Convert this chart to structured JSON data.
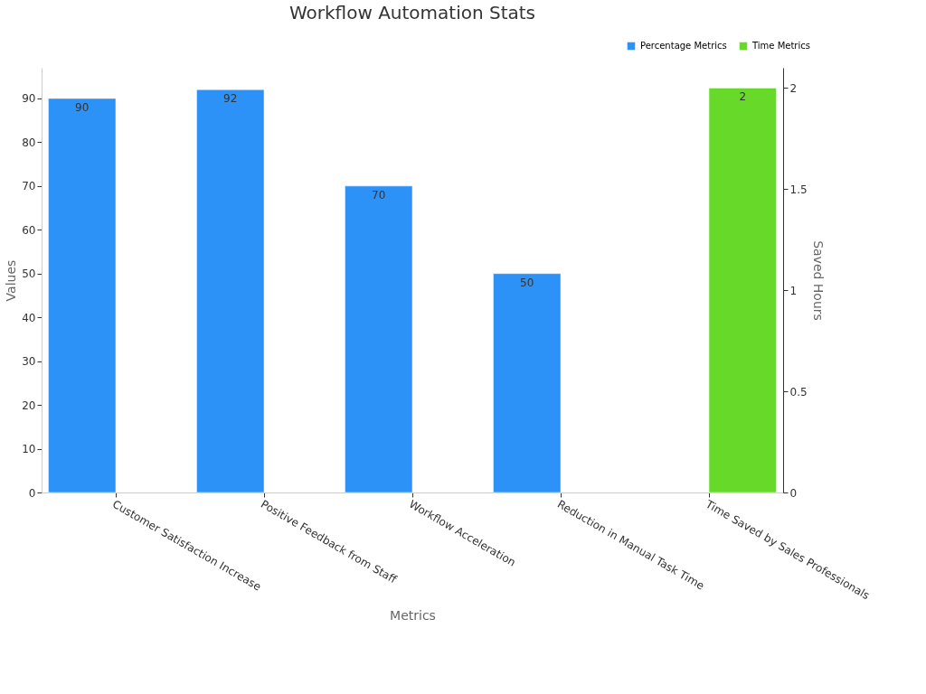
{
  "chart_data": {
    "type": "bar",
    "title": "Workflow Automation Stats",
    "xlabel": "Metrics",
    "ylabel": "Values",
    "y2label": "Saved Hours",
    "categories": [
      "Customer Satisfaction Increase",
      "Positive Feedback from Staff",
      "Workflow Acceleration",
      "Reduction in Manual Task Time",
      "Time Saved by Sales Professionals"
    ],
    "series": [
      {
        "name": "Percentage Metrics",
        "color": "#2d92f7",
        "values": [
          90,
          92,
          70,
          50,
          null
        ]
      },
      {
        "name": "Time Metrics",
        "color": "#66d929",
        "values": [
          null,
          null,
          null,
          null,
          2
        ],
        "axis": "y2"
      }
    ],
    "ylim": [
      0,
      97
    ],
    "yticks": [
      0,
      10,
      20,
      30,
      40,
      50,
      60,
      70,
      80,
      90
    ],
    "y2lim": [
      0,
      2.1
    ],
    "y2ticks": [
      0,
      0.5,
      1,
      1.5,
      2
    ],
    "data_labels": true,
    "legend": "top right",
    "grid": false
  }
}
